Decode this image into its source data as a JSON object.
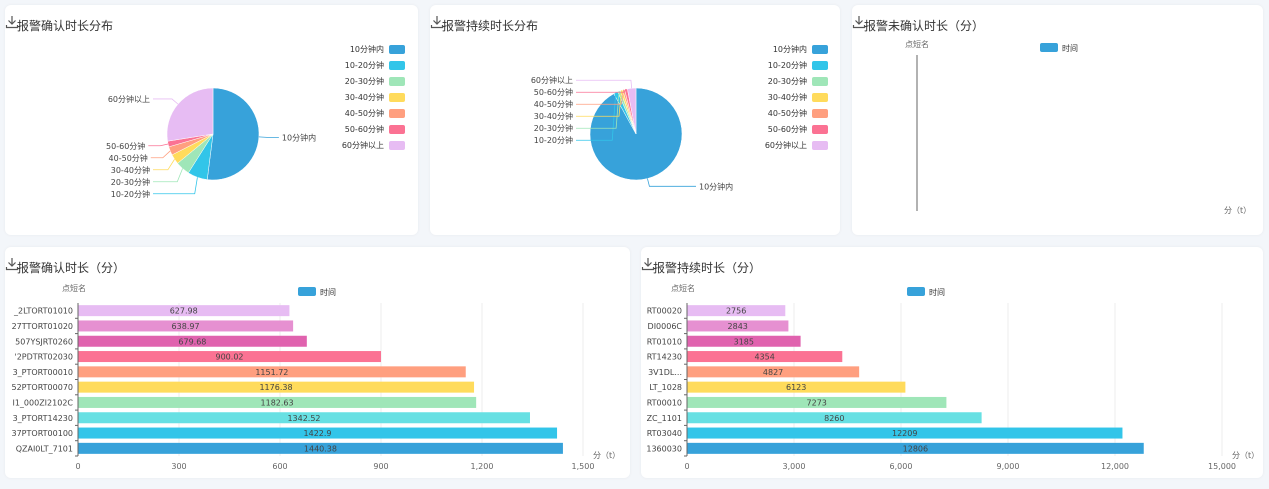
{
  "download_icon": "download-icon",
  "cards": [
    {
      "title": "报警确认时长分布"
    },
    {
      "title": "报警持续时长分布"
    },
    {
      "title": "报警未确认时长（分）"
    },
    {
      "title": "报警确认时长（分）"
    },
    {
      "title": "报警持续时长（分）"
    }
  ],
  "chart_data": [
    {
      "type": "pie",
      "title": "报警确认时长分布",
      "legend_position": "right",
      "categories": [
        "10分钟内",
        "10-20分钟",
        "20-30分钟",
        "30-40分钟",
        "40-50分钟",
        "50-60分钟",
        "60分钟以上"
      ],
      "values": [
        52,
        7,
        5,
        3.5,
        3,
        2,
        27.5
      ],
      "colors": [
        "#37a2da",
        "#32c5e9",
        "#9fe6b8",
        "#ffdb5c",
        "#ff9f7f",
        "#fb7293",
        "#e7bcf3"
      ]
    },
    {
      "type": "pie",
      "title": "报警持续时长分布",
      "legend_position": "right",
      "categories": [
        "10分钟内",
        "10-20分钟",
        "20-30分钟",
        "30-40分钟",
        "40-50分钟",
        "50-60分钟",
        "60分钟以上"
      ],
      "values": [
        92,
        1.5,
        1,
        0.8,
        0.7,
        1,
        3
      ],
      "colors": [
        "#37a2da",
        "#32c5e9",
        "#9fe6b8",
        "#ffdb5c",
        "#ff9f7f",
        "#fb7293",
        "#e7bcf3"
      ]
    },
    {
      "type": "bar",
      "title": "报警未确认时长（分）",
      "ylabel": "点短名",
      "xlabel": "分（t）",
      "legend": [
        "时间"
      ],
      "categories": [],
      "values": []
    },
    {
      "type": "bar",
      "orientation": "horizontal",
      "title": "报警确认时长（分）",
      "ylabel": "点短名",
      "xlabel": "分（t）",
      "legend": [
        "时间"
      ],
      "categories": [
        "QZAI0LT_7101",
        "37PTORT00100",
        "3_PTORT14230",
        "I1_000ZI2102C",
        "52PTORT00070",
        "3_PTORT00010",
        "'2PDTRT02030",
        "507YSJRT0260",
        "27TTORT01020",
        "_2LTORT01010"
      ],
      "values": [
        1440.38,
        1422.9,
        1342.52,
        1182.63,
        1176.38,
        1151.72,
        900.02,
        679.68,
        638.97,
        627.98
      ],
      "xlim": [
        0,
        1500
      ],
      "xticks": [
        "0",
        "300",
        "600",
        "900",
        "1,200",
        "1,500"
      ]
    },
    {
      "type": "bar",
      "orientation": "horizontal",
      "title": "报警持续时长（分）",
      "ylabel": "点短名",
      "xlabel": "分（t）",
      "legend": [
        "时间"
      ],
      "categories": [
        "1360030",
        "RT03040",
        "ZC_1101",
        "RT00010",
        "LT_1028",
        "3V1DL...",
        "RT14230",
        "RT01010",
        "DI0006C",
        "RT00020"
      ],
      "values": [
        12806,
        12209,
        8260,
        7273,
        6123,
        4827,
        4354,
        3185,
        2843,
        2756
      ],
      "xlim": [
        0,
        15000
      ],
      "xticks": [
        "0",
        "3,000",
        "6,000",
        "9,000",
        "12,000",
        "15,000"
      ]
    }
  ],
  "bar_colors": [
    "#37a2da",
    "#32c5e9",
    "#67e0e3",
    "#9fe6b8",
    "#ffdb5c",
    "#ff9f7f",
    "#fb7293",
    "#e062ae",
    "#e690d1",
    "#e7bcf3"
  ]
}
